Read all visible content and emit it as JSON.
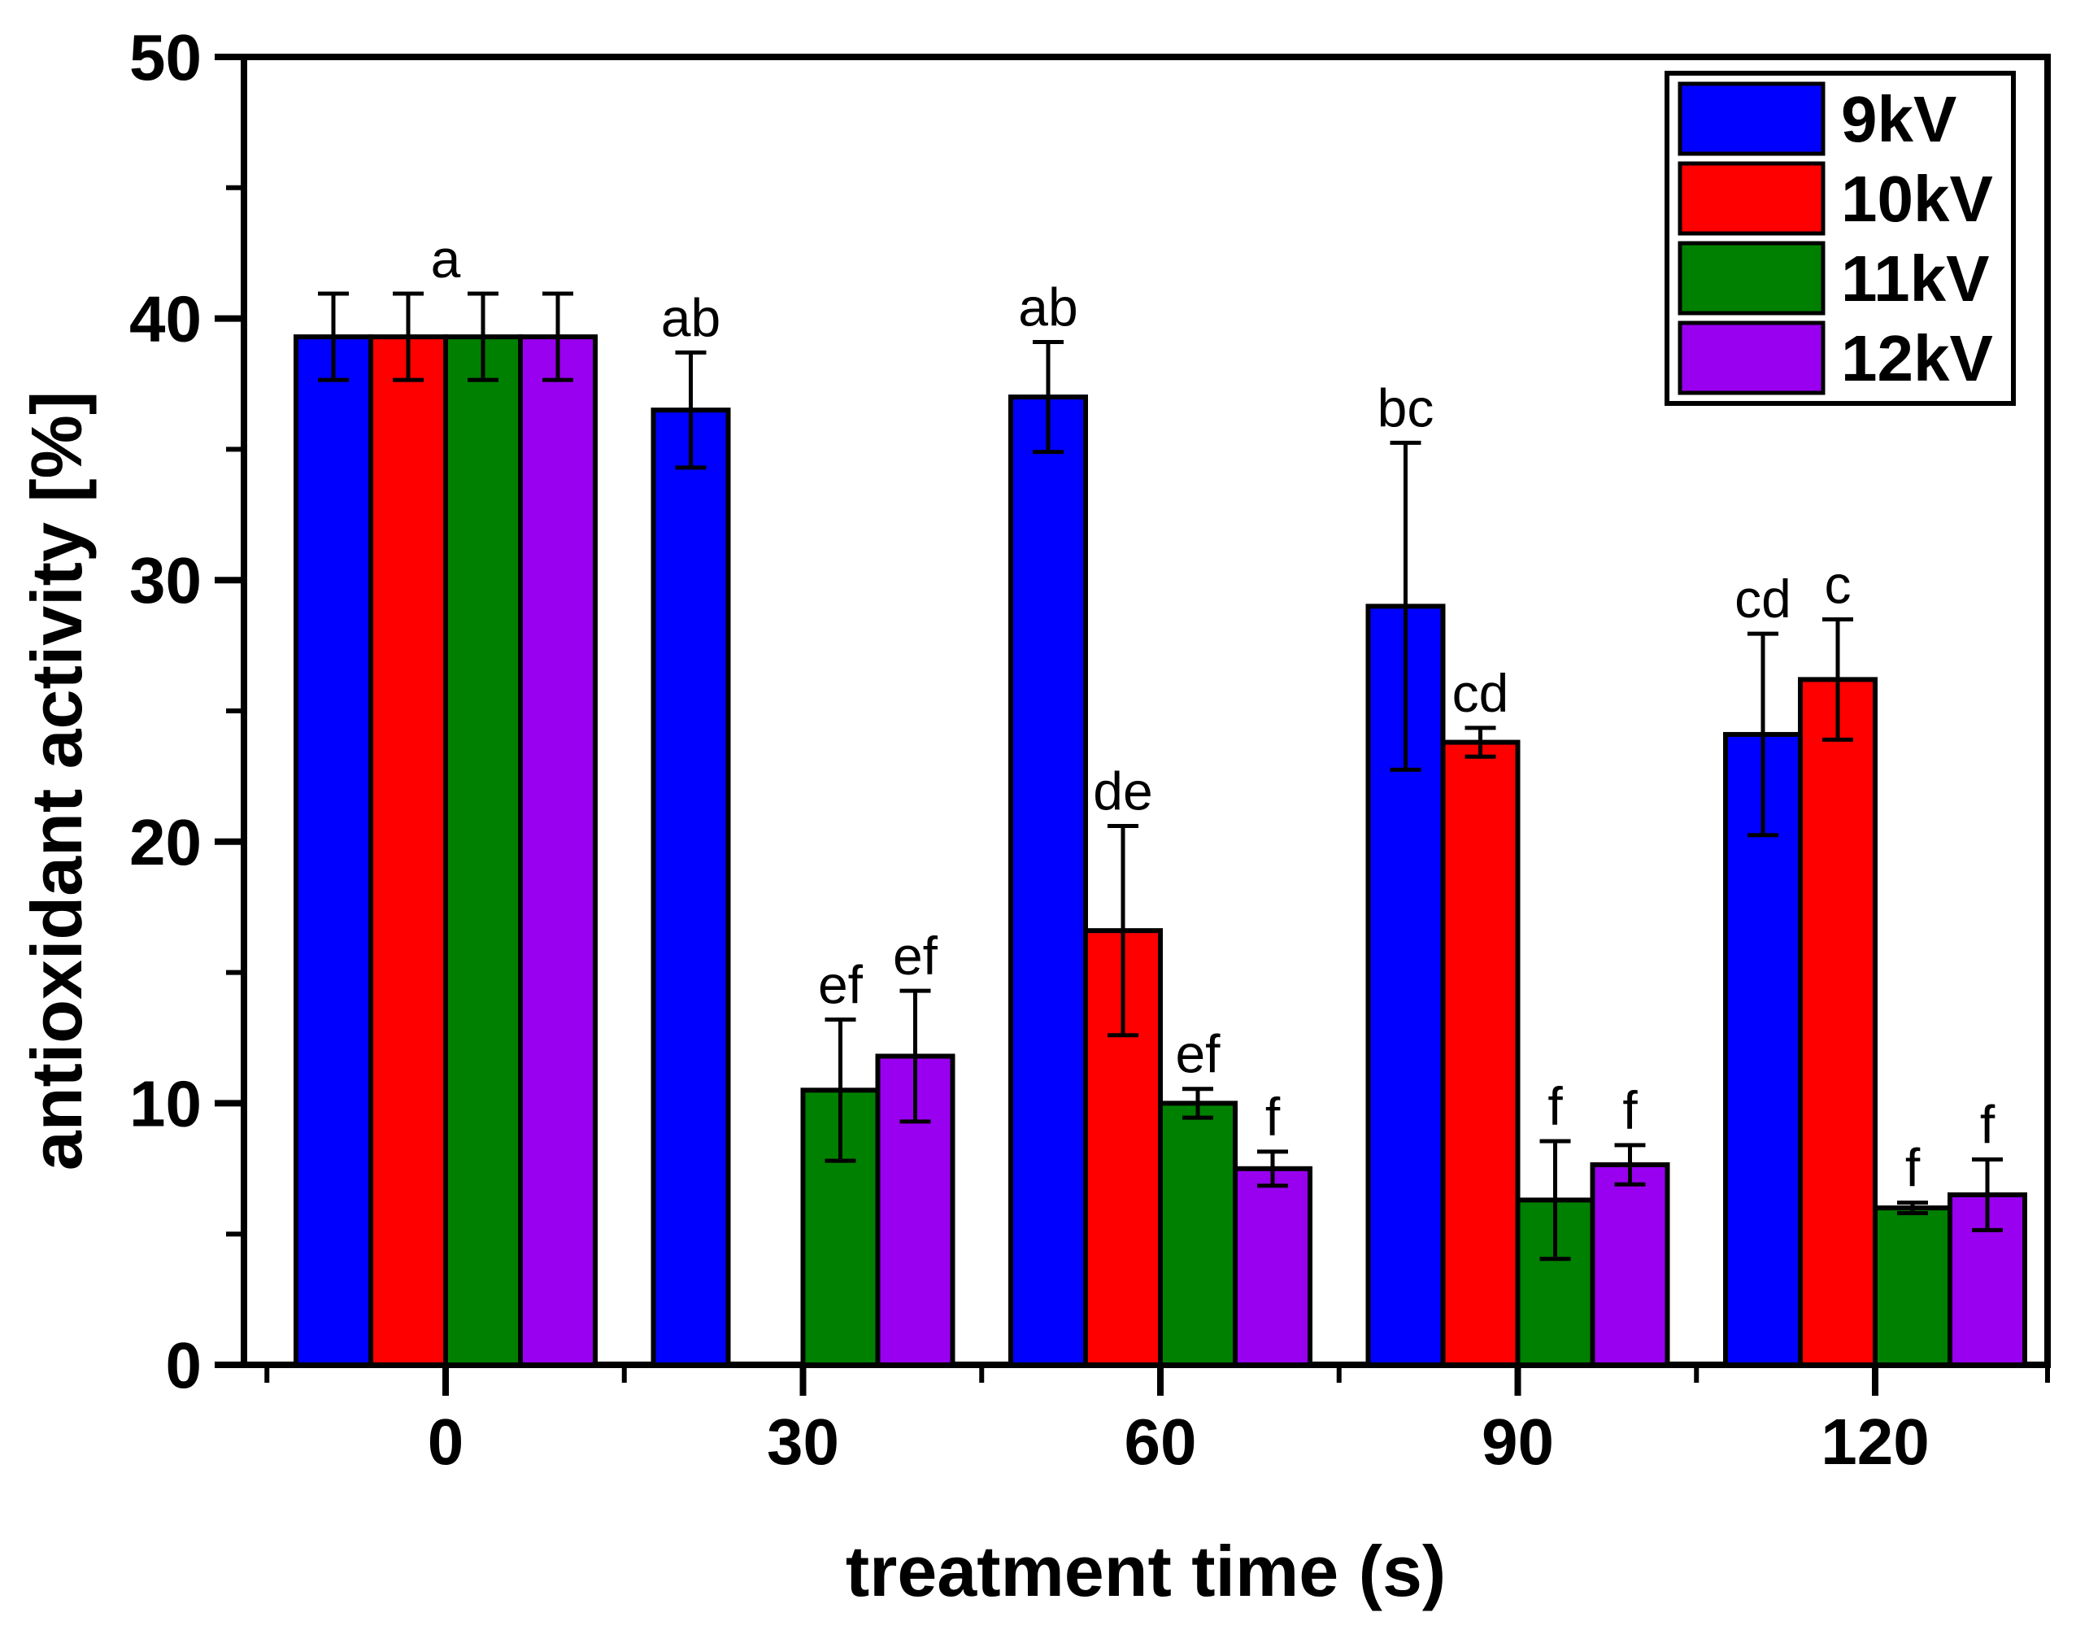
{
  "chart_data": {
    "type": "bar",
    "title": "",
    "xlabel": "treatment time (s)",
    "ylabel": "antioxidant activity [%]",
    "categories": [
      "0",
      "30",
      "60",
      "90",
      "120"
    ],
    "ylim": [
      0,
      50
    ],
    "yticks": [
      0,
      10,
      20,
      30,
      40,
      50
    ],
    "yminor": [
      5,
      15,
      25,
      35,
      45
    ],
    "xminor_edges": true,
    "grid": false,
    "legend_position": "top-right",
    "frame_color": "#000000",
    "background_color": "#ffffff",
    "group_letters": [
      "a",
      null,
      null,
      null,
      null
    ],
    "series": [
      {
        "name": "9kV",
        "color": "#0000FF",
        "values": [
          39.3,
          36.5,
          37.0,
          29.0,
          24.1
        ],
        "errors": [
          1.65,
          2.2,
          2.1,
          6.25,
          3.85
        ],
        "letters": [
          null,
          "ab",
          "ab",
          "bc",
          "cd"
        ]
      },
      {
        "name": "10kV",
        "color": "#FF0000",
        "values": [
          39.3,
          null,
          16.6,
          23.8,
          26.2
        ],
        "errors": [
          1.65,
          null,
          4.0,
          0.55,
          2.3
        ],
        "letters": [
          null,
          null,
          "de",
          "cd",
          "c"
        ]
      },
      {
        "name": "11kV",
        "color": "#008000",
        "values": [
          39.3,
          10.5,
          10.0,
          6.3,
          6.0
        ],
        "errors": [
          1.65,
          2.7,
          0.55,
          2.25,
          0.2
        ],
        "letters": [
          null,
          "ef",
          "ef",
          "f",
          "f"
        ]
      },
      {
        "name": "12kV",
        "color": "#9900F0",
        "values": [
          39.3,
          11.8,
          7.5,
          7.65,
          6.5
        ],
        "errors": [
          1.65,
          2.5,
          0.65,
          0.75,
          1.35
        ],
        "letters": [
          null,
          "ef",
          "f",
          "f",
          "f"
        ]
      }
    ]
  }
}
